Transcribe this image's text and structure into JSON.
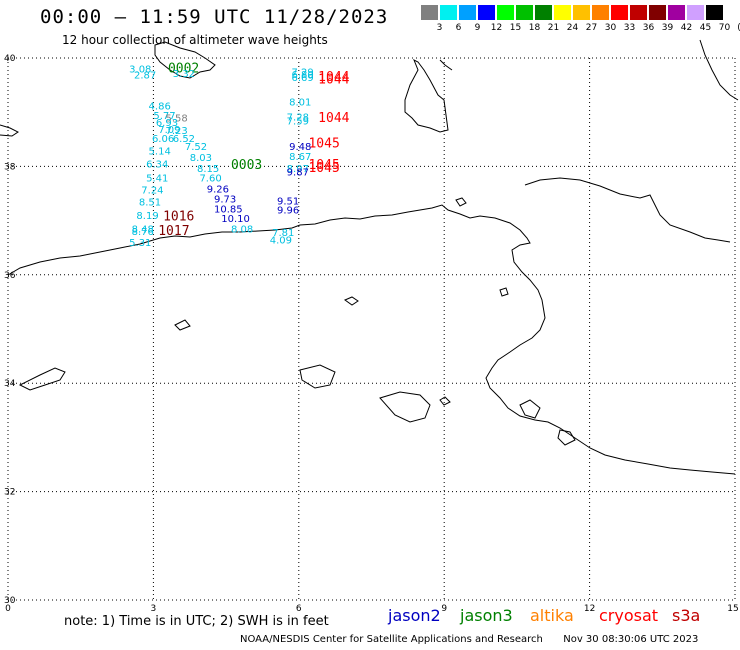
{
  "header": {
    "title": "00:00 – 11:59 UTC 11/28/2023",
    "subtitle": "12 hour collection of altimeter wave heights"
  },
  "colorbar": {
    "unit": "(ft)",
    "swatches": [
      {
        "label": "3",
        "color": "#808080"
      },
      {
        "label": "6",
        "color": "#00f0f0"
      },
      {
        "label": "9",
        "color": "#00a0ff"
      },
      {
        "label": "12",
        "color": "#0000ff"
      },
      {
        "label": "15",
        "color": "#00ff00"
      },
      {
        "label": "18",
        "color": "#00c000"
      },
      {
        "label": "21",
        "color": "#008000"
      },
      {
        "label": "24",
        "color": "#ffff00"
      },
      {
        "label": "27",
        "color": "#ffc000"
      },
      {
        "label": "30",
        "color": "#ff8000"
      },
      {
        "label": "33",
        "color": "#ff0000"
      },
      {
        "label": "36",
        "color": "#c00000"
      },
      {
        "label": "39",
        "color": "#800000"
      },
      {
        "label": "42",
        "color": "#a000a0"
      },
      {
        "label": "45",
        "color": "#d0a0ff"
      },
      {
        "label": "70",
        "color": "#000000"
      }
    ]
  },
  "axes": {
    "lon_ticks": [
      "0",
      "3",
      "6",
      "9",
      "12",
      "15"
    ],
    "lat_ticks": [
      "40",
      "38",
      "36",
      "34",
      "32",
      "30"
    ]
  },
  "map_data": {
    "extent": {
      "lon": [
        0,
        15
      ],
      "lat": [
        30,
        40
      ]
    },
    "track_times": [
      {
        "label": "0002",
        "lon": 3.3,
        "lat": 39.73,
        "color": "#008000"
      },
      {
        "label": "0003",
        "lon": 4.6,
        "lat": 37.95,
        "color": "#008000"
      },
      {
        "label": "1044",
        "lon": 6.4,
        "lat": 39.58,
        "color": "#ff0000"
      },
      {
        "label": "1044",
        "lon": 6.4,
        "lat": 39.53,
        "color": "#ff0000"
      },
      {
        "label": "1044",
        "lon": 6.4,
        "lat": 38.82,
        "color": "#ff0000"
      },
      {
        "label": "1045",
        "lon": 6.2,
        "lat": 38.35,
        "color": "#ff0000"
      },
      {
        "label": "1045",
        "lon": 6.2,
        "lat": 37.95,
        "color": "#ff0000"
      },
      {
        "label": "1045",
        "lon": 6.2,
        "lat": 37.9,
        "color": "#ff0000"
      },
      {
        "label": "1016",
        "lon": 3.2,
        "lat": 37.0,
        "color": "#800000"
      },
      {
        "label": "1017",
        "lon": 3.1,
        "lat": 36.73,
        "color": "#800000"
      }
    ],
    "wave_heights": [
      {
        "text": "3.08",
        "lon": 2.5,
        "lat": 39.73,
        "color": "#00c0e0"
      },
      {
        "text": "2.87",
        "lon": 2.6,
        "lat": 39.62,
        "color": "#00c0e0"
      },
      {
        "text": "3.32",
        "lon": 3.4,
        "lat": 39.65,
        "color": "#00c0e0"
      },
      {
        "text": "4.86",
        "lon": 2.9,
        "lat": 39.05,
        "color": "#00c0e0"
      },
      {
        "text": "5.77",
        "lon": 3.0,
        "lat": 38.87,
        "color": "#00c0e0"
      },
      {
        "text": "5.58",
        "lon": 3.25,
        "lat": 38.83,
        "color": "#808080"
      },
      {
        "text": "6.93",
        "lon": 3.05,
        "lat": 38.75,
        "color": "#00c0e0"
      },
      {
        "text": "7.09",
        "lon": 3.1,
        "lat": 38.62,
        "color": "#00c0e0"
      },
      {
        "text": "7.23",
        "lon": 3.25,
        "lat": 38.6,
        "color": "#00c0e0"
      },
      {
        "text": "6.06",
        "lon": 2.97,
        "lat": 38.45,
        "color": "#00c0e0"
      },
      {
        "text": "6.52",
        "lon": 3.4,
        "lat": 38.45,
        "color": "#00c0e0"
      },
      {
        "text": "5.14",
        "lon": 2.9,
        "lat": 38.22,
        "color": "#00c0e0"
      },
      {
        "text": "7.52",
        "lon": 3.65,
        "lat": 38.3,
        "color": "#00c0e0"
      },
      {
        "text": "8.03",
        "lon": 3.75,
        "lat": 38.1,
        "color": "#00c0e0"
      },
      {
        "text": "6.34",
        "lon": 2.85,
        "lat": 37.98,
        "color": "#00c0e0"
      },
      {
        "text": "8.15",
        "lon": 3.9,
        "lat": 37.9,
        "color": "#00c0e0"
      },
      {
        "text": "5.41",
        "lon": 2.85,
        "lat": 37.72,
        "color": "#00c0e0"
      },
      {
        "text": "7.60",
        "lon": 3.95,
        "lat": 37.72,
        "color": "#00c0e0"
      },
      {
        "text": "7.24",
        "lon": 2.75,
        "lat": 37.5,
        "color": "#00c0e0"
      },
      {
        "text": "9.26",
        "lon": 4.1,
        "lat": 37.52,
        "color": "#0000c0"
      },
      {
        "text": "8.51",
        "lon": 2.7,
        "lat": 37.28,
        "color": "#00c0e0"
      },
      {
        "text": "9.73",
        "lon": 4.25,
        "lat": 37.33,
        "color": "#0000c0"
      },
      {
        "text": "10.85",
        "lon": 4.25,
        "lat": 37.15,
        "color": "#0000c0"
      },
      {
        "text": "8.19",
        "lon": 2.65,
        "lat": 37.03,
        "color": "#00c0e0"
      },
      {
        "text": "10.10",
        "lon": 4.4,
        "lat": 36.97,
        "color": "#0000c0"
      },
      {
        "text": "8.08",
        "lon": 4.6,
        "lat": 36.78,
        "color": "#00c0e0"
      },
      {
        "text": "8.48",
        "lon": 2.55,
        "lat": 36.78,
        "color": "#00c0e0"
      },
      {
        "text": "8.76",
        "lon": 2.55,
        "lat": 36.73,
        "color": "#00c0e0"
      },
      {
        "text": "5.31",
        "lon": 2.5,
        "lat": 36.53,
        "color": "#00c0e0"
      },
      {
        "text": "7.29",
        "lon": 5.85,
        "lat": 39.68,
        "color": "#00c0e0"
      },
      {
        "text": "6.80",
        "lon": 5.85,
        "lat": 39.63,
        "color": "#00c0e0"
      },
      {
        "text": "6.69",
        "lon": 5.85,
        "lat": 39.58,
        "color": "#00c0e0"
      },
      {
        "text": "8.01",
        "lon": 5.8,
        "lat": 39.12,
        "color": "#00c0e0"
      },
      {
        "text": "7.28",
        "lon": 5.75,
        "lat": 38.85,
        "color": "#00c0e0"
      },
      {
        "text": "7.59",
        "lon": 5.75,
        "lat": 38.77,
        "color": "#00c0e0"
      },
      {
        "text": "9.48",
        "lon": 5.8,
        "lat": 38.3,
        "color": "#0000c0"
      },
      {
        "text": "8.67",
        "lon": 5.8,
        "lat": 38.12,
        "color": "#00c0e0"
      },
      {
        "text": "8.97",
        "lon": 5.75,
        "lat": 37.9,
        "color": "#00c0e0"
      },
      {
        "text": "9.87",
        "lon": 5.75,
        "lat": 37.83,
        "color": "#0000c0"
      },
      {
        "text": "9.51",
        "lon": 5.55,
        "lat": 37.3,
        "color": "#0000c0"
      },
      {
        "text": "9.96",
        "lon": 5.55,
        "lat": 37.13,
        "color": "#0000c0"
      },
      {
        "text": "7.81",
        "lon": 5.45,
        "lat": 36.72,
        "color": "#00c0e0"
      },
      {
        "text": "4.09",
        "lon": 5.4,
        "lat": 36.58,
        "color": "#00c0e0"
      }
    ]
  },
  "legend": {
    "note": "note:  1) Time is in UTC;  2) SWH is in feet",
    "satellites": [
      {
        "name": "jason2",
        "color": "#0000c0"
      },
      {
        "name": "jason3",
        "color": "#008000"
      },
      {
        "name": "altika",
        "color": "#ff8000"
      },
      {
        "name": "cryosat",
        "color": "#ff0000"
      },
      {
        "name": "s3a",
        "color": "#c00000"
      }
    ]
  },
  "footer": {
    "credit": "NOAA/NESDIS Center for Satellite Applications and Research",
    "timestamp": "Nov 30 08:30:06 UTC 2023"
  }
}
